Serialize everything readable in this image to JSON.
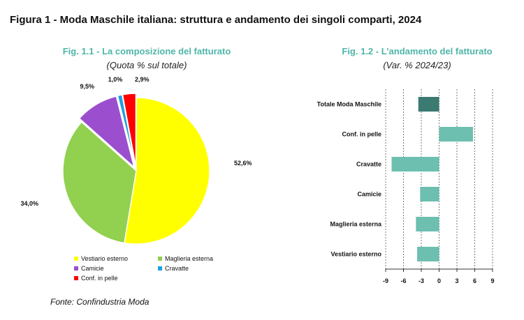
{
  "header": {
    "title": "Figura 1 - Moda Maschile italiana: struttura e andamento dei singoli comparti, 2024"
  },
  "footer": {
    "source": "Fonte: Confindustria Moda"
  },
  "chart_data": [
    {
      "type": "pie",
      "title": "Fig. 1.1 - La composizione del fatturato",
      "subtitle": "(Quota % sul totale)",
      "slices": [
        {
          "name": "Vestiario esterno",
          "value": 52.6,
          "label": "52,6%",
          "color": "#ffff00"
        },
        {
          "name": "Maglieria esterna",
          "value": 34.0,
          "label": "34,0%",
          "color": "#92d050"
        },
        {
          "name": "Camicie",
          "value": 9.5,
          "label": "9,5%",
          "color": "#9b4fcf"
        },
        {
          "name": "Cravatte",
          "value": 1.0,
          "label": "1,0%",
          "color": "#1f9fe0"
        },
        {
          "name": "Conf. in pelle",
          "value": 2.9,
          "label": "2,9%",
          "color": "#ff0000"
        }
      ],
      "legend_position": "bottom"
    },
    {
      "type": "bar",
      "orientation": "horizontal",
      "title": "Fig. 1.2 - L’andamento del fatturato",
      "subtitle": "(Var. % 2024/23)",
      "categories": [
        "Totale Moda Maschile",
        "Conf. in pelle",
        "Cravatte",
        "Camicie",
        "Maglieria esterna",
        "Vestiario esterno"
      ],
      "values": [
        -3.5,
        5.7,
        -8.0,
        -3.2,
        -3.9,
        -3.7
      ],
      "colors": [
        "#3a7a70",
        "#6dbfb0",
        "#6dbfb0",
        "#6dbfb0",
        "#6dbfb0",
        "#6dbfb0"
      ],
      "xlim": [
        -9,
        9
      ],
      "xticks": [
        "-9",
        "-6",
        "-3",
        "0",
        "3",
        "6",
        "9"
      ],
      "grid": "vertical dashed"
    }
  ]
}
